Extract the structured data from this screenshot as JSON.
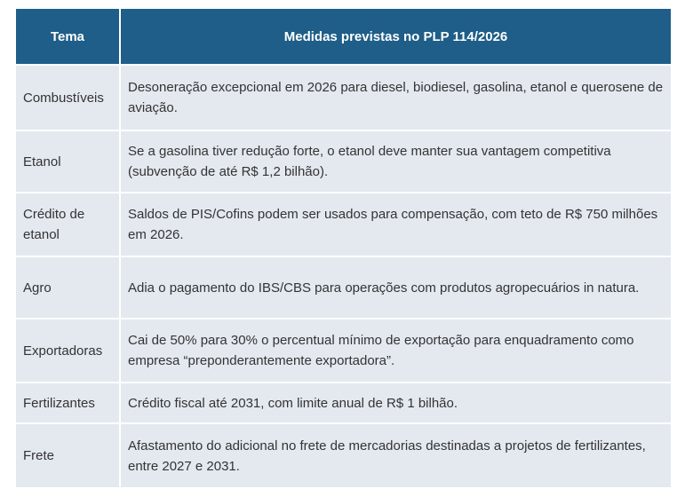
{
  "table": {
    "header": [
      "Tema",
      "Medidas previstas no PLP 114/2026"
    ],
    "rows": [
      [
        "Combustíveis",
        "Desoneração excepcional em 2026 para diesel, biodiesel, gasolina, etanol e querosene de aviação."
      ],
      [
        "Etanol",
        "Se a gasolina tiver redução forte, o etanol deve manter sua vantagem competitiva (subvenção de até R$ 1,2 bilhão)."
      ],
      [
        "Crédito de etanol",
        "Saldos de PIS/Cofins podem ser usados para compensação, com teto de R$ 750 milhões em 2026."
      ],
      [
        "Agro",
        "Adia o pagamento do IBS/CBS para operações com produtos agropecuários in natura."
      ],
      [
        "Exportadoras",
        "Cai de 50% para 30% o percentual mínimo de exportação para enquadramento como empresa “preponderantemente exportadora”."
      ],
      [
        "Fertilizantes",
        "Crédito fiscal até 2031, com limite anual de R$ 1 bilhão."
      ],
      [
        "Frete",
        "Afastamento do adicional no frete de mercadorias destinadas a projetos de fertilizantes, entre 2027 e 2031."
      ]
    ]
  }
}
